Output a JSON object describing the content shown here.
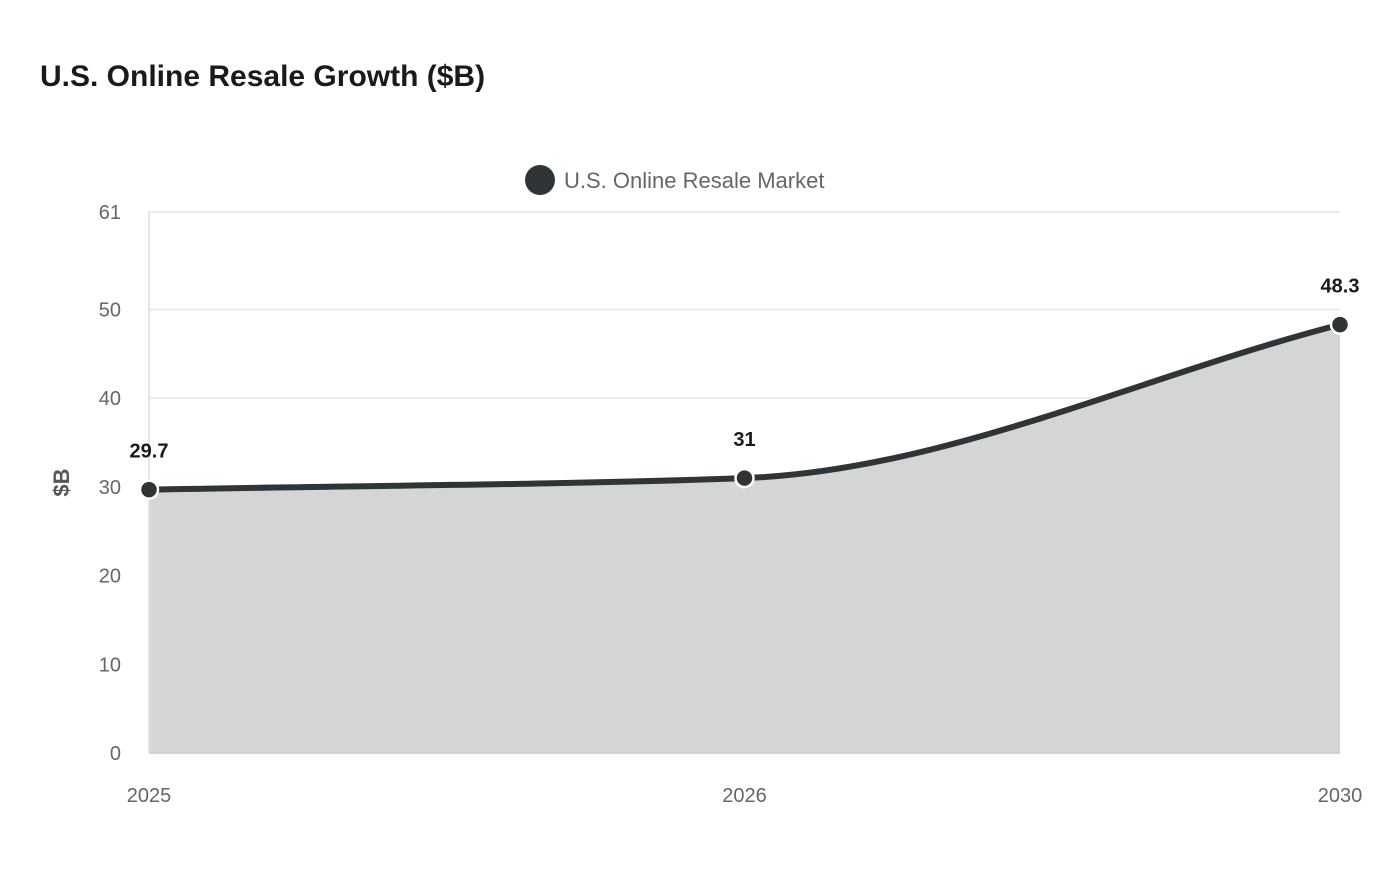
{
  "chart_data": {
    "type": "area",
    "title": "U.S. Online Resale Growth ($B)",
    "categories": [
      "2025",
      "2026",
      "2030"
    ],
    "series": [
      {
        "name": "U.S. Online Resale Market",
        "values": [
          29.7,
          31,
          48.3
        ]
      }
    ],
    "xlabel": "",
    "ylabel": "$B",
    "ylim": [
      0,
      61
    ],
    "yticks": [
      0,
      10,
      20,
      30,
      40,
      50,
      61
    ],
    "grid": true,
    "legend_position": "top-center",
    "colors": {
      "line": "#2f3537",
      "fill": "#d4d6d5",
      "grid": "#e6e6e6"
    }
  }
}
